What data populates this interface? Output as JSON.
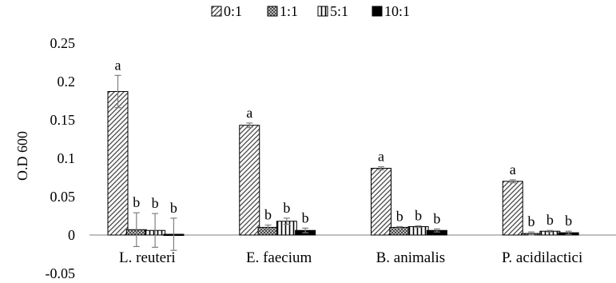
{
  "chart_data": {
    "type": "bar",
    "title": "",
    "xlabel": "",
    "ylabel": "O.D 600",
    "ylim": [
      -0.05,
      0.25
    ],
    "yticks": [
      -0.05,
      0,
      0.05,
      0.1,
      0.15,
      0.2,
      0.25
    ],
    "ytick_labels": [
      "-0.05",
      "0",
      "0.05",
      "0.1",
      "0.15",
      "0.2",
      "0.25"
    ],
    "grid": false,
    "legend_position": "top-center",
    "categories": [
      "L. reuteri",
      "E. faecium",
      "B. animalis",
      "P. acidilactici"
    ],
    "series": [
      {
        "name": "0:1",
        "pattern": "diagonal-hatch",
        "values": [
          0.187,
          0.143,
          0.087,
          0.07
        ],
        "errors": [
          0.021,
          0.003,
          0.002,
          0.002
        ],
        "labels": [
          "a",
          "a",
          "a",
          "a"
        ]
      },
      {
        "name": "1:1",
        "pattern": "dotted-fill",
        "values": [
          0.007,
          0.01,
          0.01,
          0.002
        ],
        "errors": [
          0.022,
          0.003,
          0.001,
          0.002
        ],
        "labels": [
          "b",
          "b",
          "b",
          "b"
        ]
      },
      {
        "name": "5:1",
        "pattern": "vertical-stripes",
        "values": [
          0.006,
          0.018,
          0.011,
          0.005
        ],
        "errors": [
          0.022,
          0.004,
          0.001,
          0.001
        ],
        "labels": [
          "b",
          "b",
          "b",
          "b"
        ]
      },
      {
        "name": "10:1",
        "pattern": "solid",
        "values": [
          0.001,
          0.006,
          0.006,
          0.003
        ],
        "errors": [
          0.021,
          0.003,
          0.002,
          0.002
        ],
        "labels": [
          "b",
          "b",
          "b",
          "b"
        ]
      }
    ],
    "colors": {
      "bar_stroke": "#000000",
      "hatch_line": "#444444",
      "dots": "#555555",
      "solid_fill": "#000000",
      "error_bar": "#7f7f7f",
      "axis": "#7f7f7f"
    }
  }
}
